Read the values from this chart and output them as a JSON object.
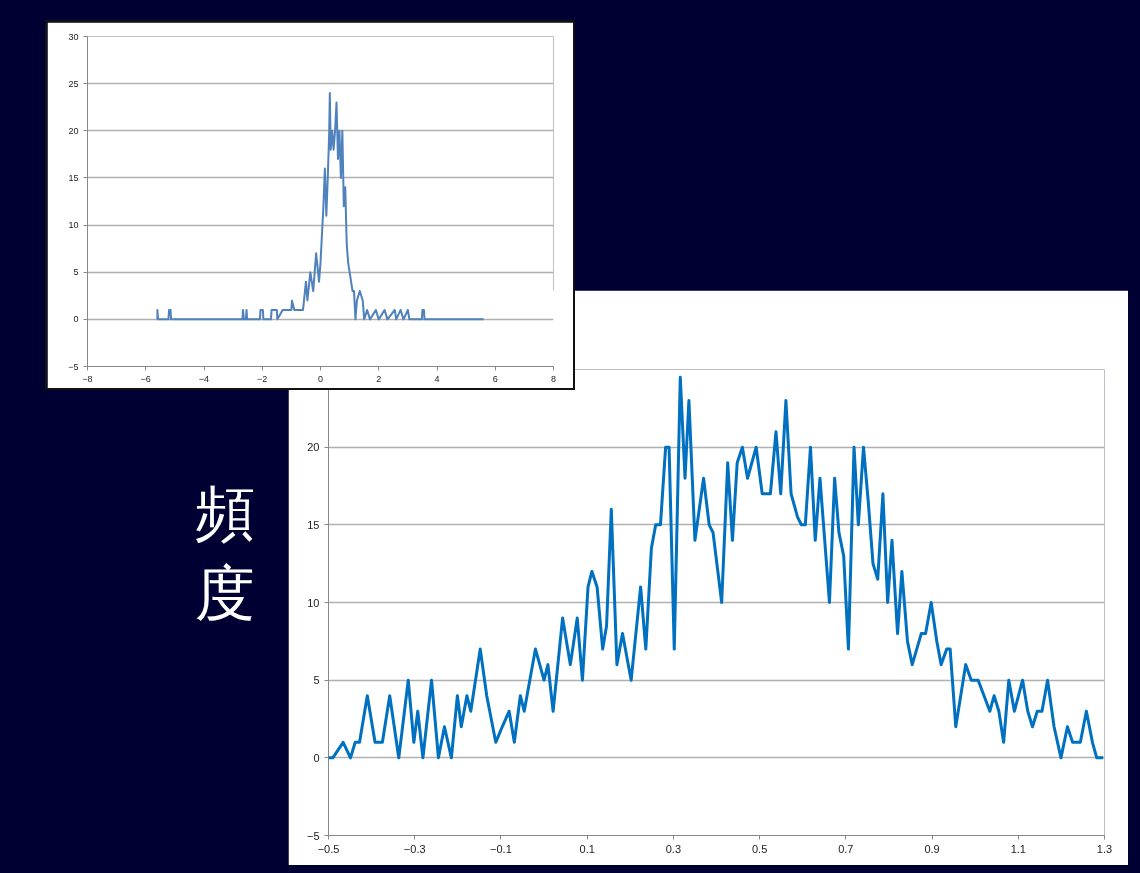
{
  "chart_data": [
    {
      "type": "line",
      "xlim": [
        -8,
        8
      ],
      "ylim": [
        -5,
        30
      ],
      "xticks": [
        -8,
        -6,
        -4,
        -2,
        0,
        2,
        4,
        6,
        8
      ],
      "yticks": [
        -5,
        0,
        5,
        10,
        15,
        20,
        25,
        30
      ],
      "grid": "y",
      "line_style": "solid",
      "x": [
        -5.6,
        -5.6,
        -5.58,
        -5.22,
        -5.2,
        -5.15,
        -5.13,
        -2.68,
        -2.66,
        -2.63,
        -2.56,
        -2.54,
        -2.52,
        -2.08,
        -2.06,
        -1.98,
        -1.96,
        -1.7,
        -1.68,
        -1.5,
        -1.48,
        -1.3,
        -1.0,
        -0.98,
        -0.9,
        -0.6,
        -0.5,
        -0.45,
        -0.35,
        -0.25,
        -0.15,
        -0.05,
        0.0,
        0.05,
        0.1,
        0.15,
        0.2,
        0.25,
        0.3,
        0.32,
        0.35,
        0.4,
        0.45,
        0.5,
        0.55,
        0.6,
        0.65,
        0.7,
        0.75,
        0.8,
        0.85,
        0.9,
        0.95,
        1.0,
        1.05,
        1.1,
        1.15,
        1.2,
        1.25,
        1.35,
        1.45,
        1.5,
        1.6,
        1.7,
        1.9,
        2.0,
        2.2,
        2.3,
        2.55,
        2.6,
        2.75,
        2.85,
        3.0,
        3.05,
        3.48,
        3.5,
        3.55,
        3.57,
        5.6
      ],
      "series": [
        {
          "color": "#4f81bd",
          "values": [
            0,
            1,
            0,
            0,
            1,
            1,
            0,
            0,
            1,
            0,
            0,
            1,
            0,
            0,
            1,
            1,
            0,
            0,
            1,
            1,
            0,
            1,
            1,
            2,
            1,
            1,
            4,
            2,
            5,
            3,
            7,
            4,
            6,
            9,
            12,
            16,
            11,
            15,
            20,
            24,
            18,
            20,
            18,
            20,
            23,
            17,
            20,
            15,
            20,
            12,
            14,
            8,
            6,
            5,
            4,
            3,
            3,
            0,
            2,
            3,
            2,
            0,
            1,
            0,
            1,
            0,
            1,
            0,
            1,
            0,
            1,
            0,
            1,
            0,
            0,
            1,
            1,
            0,
            0
          ]
        }
      ]
    },
    {
      "type": "line",
      "ylabel": "頻度",
      "xlim": [
        -0.5,
        1.3
      ],
      "ylim": [
        -5,
        25
      ],
      "xticks": [
        -0.5,
        -0.3,
        -0.1,
        0.1,
        0.3,
        0.5,
        0.7,
        0.9,
        1.1,
        1.3
      ],
      "yticks": [
        -5,
        0,
        5,
        10,
        15,
        20,
        {
          "value": 25,
          "label": null
        }
      ],
      "grid": "y",
      "line_style": "solid",
      "x": [
        -0.5,
        -0.49,
        -0.466,
        -0.449,
        -0.438,
        -0.428,
        -0.41,
        -0.392,
        -0.375,
        -0.358,
        -0.337,
        -0.315,
        -0.302,
        -0.293,
        -0.281,
        -0.261,
        -0.245,
        -0.231,
        -0.215,
        -0.201,
        -0.192,
        -0.179,
        -0.17,
        -0.148,
        -0.133,
        -0.112,
        -0.097,
        -0.081,
        -0.069,
        -0.055,
        -0.046,
        -0.02,
        0.0,
        0.009,
        0.021,
        0.043,
        0.061,
        0.077,
        0.089,
        0.102,
        0.111,
        0.123,
        0.136,
        0.145,
        0.156,
        0.169,
        0.182,
        0.202,
        0.224,
        0.236,
        0.249,
        0.259,
        0.27,
        0.282,
        0.29,
        0.302,
        0.316,
        0.327,
        0.336,
        0.35,
        0.37,
        0.383,
        0.392,
        0.412,
        0.426,
        0.437,
        0.448,
        0.46,
        0.472,
        0.492,
        0.506,
        0.517,
        0.525,
        0.538,
        0.549,
        0.561,
        0.573,
        0.588,
        0.597,
        0.606,
        0.618,
        0.629,
        0.64,
        0.662,
        0.674,
        0.684,
        0.695,
        0.706,
        0.719,
        0.729,
        0.741,
        0.752,
        0.763,
        0.774,
        0.786,
        0.797,
        0.807,
        0.82,
        0.83,
        0.843,
        0.854,
        0.875,
        0.885,
        0.898,
        0.911,
        0.921,
        0.934,
        0.942,
        0.955,
        0.978,
        0.991,
        1.007,
        1.034,
        1.044,
        1.055,
        1.066,
        1.078,
        1.091,
        1.11,
        1.122,
        1.133,
        1.144,
        1.155,
        1.168,
        1.183,
        1.199,
        1.214,
        1.226,
        1.244,
        1.258,
        1.272,
        1.282,
        1.297
      ],
      "series": [
        {
          "color": "#0070c0",
          "values": [
            0,
            0,
            1,
            0,
            1,
            1,
            4,
            1,
            1,
            4,
            0,
            5,
            1,
            3,
            0,
            5,
            0,
            2,
            0,
            4,
            2,
            4,
            3,
            7,
            4,
            1,
            2,
            3,
            1,
            4,
            3,
            7,
            5,
            6,
            3,
            9,
            6,
            9,
            5,
            11,
            12,
            11,
            7,
            8.5,
            16,
            6,
            8,
            5,
            11,
            7,
            13.5,
            15,
            15,
            20,
            20,
            7,
            24.5,
            18,
            23,
            14,
            18,
            15,
            14.5,
            10,
            19,
            14,
            19,
            20,
            18,
            20,
            17,
            17,
            17,
            21,
            17,
            23,
            17,
            15.5,
            15,
            15,
            20,
            14,
            18,
            10,
            18,
            14.5,
            13,
            7,
            20,
            15,
            20,
            16.5,
            12.5,
            11.5,
            17,
            10,
            14,
            8,
            12,
            7.5,
            6,
            8,
            8,
            10,
            7.5,
            6,
            7,
            7,
            2,
            6,
            5,
            5,
            3,
            4,
            3,
            1,
            5,
            3,
            5,
            3,
            2,
            3,
            3,
            5,
            2,
            0,
            2,
            1,
            1,
            3,
            1,
            0,
            0
          ]
        }
      ]
    }
  ]
}
